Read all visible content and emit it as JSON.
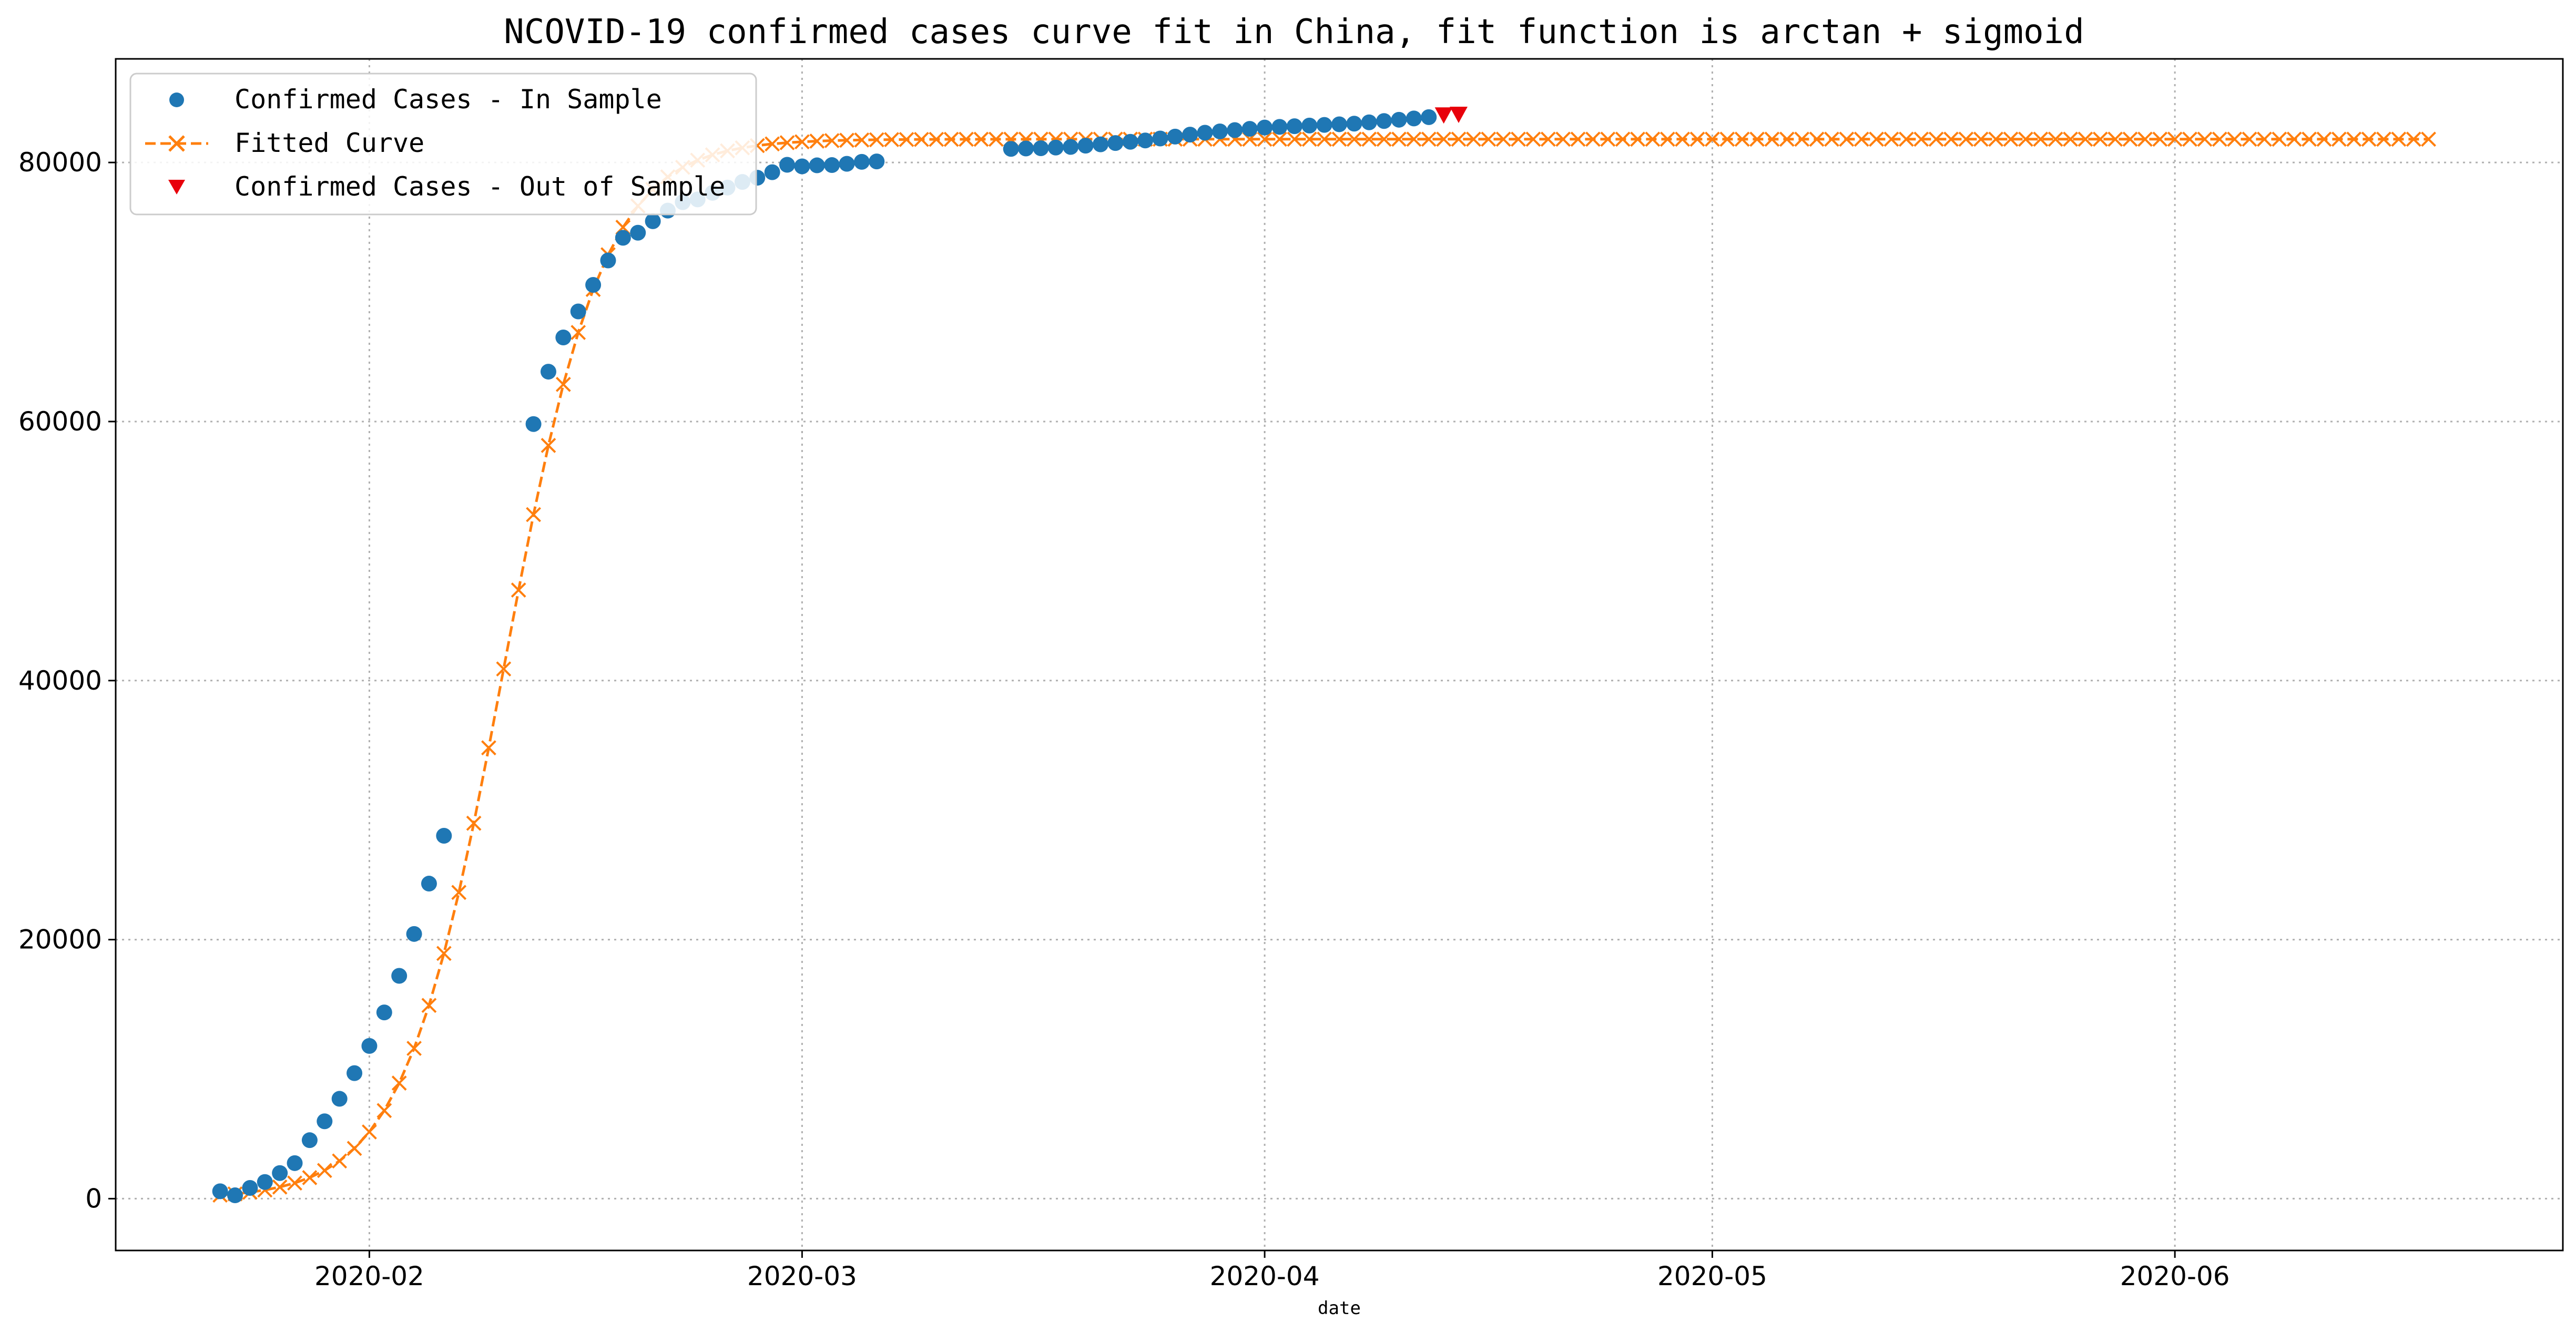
{
  "chart_data": {
    "type": "line",
    "title": "NCOVID-19 confirmed cases curve fit in China, fit function is arctan + sigmoid",
    "xlabel": "date",
    "ylabel": "",
    "x_axis": {
      "kind": "date",
      "range": [
        "2020-01-15",
        "2020-06-27"
      ],
      "ticks": [
        "2020-02-01",
        "2020-03-01",
        "2020-04-01",
        "2020-05-01",
        "2020-06-01"
      ],
      "tick_labels": [
        "2020-02",
        "2020-03",
        "2020-04",
        "2020-05",
        "2020-06"
      ]
    },
    "y_axis": {
      "range": [
        -4000,
        88000
      ],
      "ticks": [
        0,
        20000,
        40000,
        60000,
        80000
      ],
      "tick_labels": [
        "0",
        "20000",
        "40000",
        "60000",
        "80000"
      ]
    },
    "grid": true,
    "legend": {
      "position": "top-left"
    },
    "series": [
      {
        "name": "Confirmed Cases - In Sample",
        "style": "markers-circle",
        "color": "#1f77b4",
        "points": [
          [
            "2020-01-22",
            571
          ],
          [
            "2020-01-23",
            259
          ],
          [
            "2020-01-24",
            830
          ],
          [
            "2020-01-25",
            1287
          ],
          [
            "2020-01-26",
            1975
          ],
          [
            "2020-01-27",
            2744
          ],
          [
            "2020-01-28",
            4515
          ],
          [
            "2020-01-29",
            5974
          ],
          [
            "2020-01-30",
            7711
          ],
          [
            "2020-01-31",
            9692
          ],
          [
            "2020-02-01",
            11791
          ],
          [
            "2020-02-02",
            14380
          ],
          [
            "2020-02-03",
            17205
          ],
          [
            "2020-02-04",
            20438
          ],
          [
            "2020-02-05",
            24324
          ],
          [
            "2020-02-06",
            28018
          ],
          [
            "2020-02-12",
            59804
          ],
          [
            "2020-02-13",
            63851
          ],
          [
            "2020-02-14",
            66492
          ],
          [
            "2020-02-15",
            68500
          ],
          [
            "2020-02-16",
            70548
          ],
          [
            "2020-02-17",
            72436
          ],
          [
            "2020-02-18",
            74185
          ],
          [
            "2020-02-19",
            74576
          ],
          [
            "2020-02-20",
            75465
          ],
          [
            "2020-02-21",
            76288
          ],
          [
            "2020-02-22",
            76936
          ],
          [
            "2020-02-23",
            77150
          ],
          [
            "2020-02-24",
            77658
          ],
          [
            "2020-02-25",
            78064
          ],
          [
            "2020-02-26",
            78497
          ],
          [
            "2020-02-27",
            78824
          ],
          [
            "2020-02-28",
            79251
          ],
          [
            "2020-02-29",
            79824
          ],
          [
            "2020-03-01",
            79700
          ],
          [
            "2020-03-02",
            79780
          ],
          [
            "2020-03-03",
            79800
          ],
          [
            "2020-03-04",
            79900
          ],
          [
            "2020-03-05",
            80050
          ],
          [
            "2020-03-06",
            80080
          ],
          [
            "2020-03-15",
            81050
          ],
          [
            "2020-03-16",
            81080
          ],
          [
            "2020-03-17",
            81100
          ],
          [
            "2020-03-18",
            81150
          ],
          [
            "2020-03-19",
            81200
          ],
          [
            "2020-03-20",
            81300
          ],
          [
            "2020-03-21",
            81400
          ],
          [
            "2020-03-22",
            81500
          ],
          [
            "2020-03-23",
            81600
          ],
          [
            "2020-03-24",
            81700
          ],
          [
            "2020-03-25",
            81850
          ],
          [
            "2020-03-26",
            82000
          ],
          [
            "2020-03-27",
            82150
          ],
          [
            "2020-03-28",
            82300
          ],
          [
            "2020-03-29",
            82400
          ],
          [
            "2020-03-30",
            82500
          ],
          [
            "2020-03-31",
            82600
          ],
          [
            "2020-04-01",
            82700
          ],
          [
            "2020-04-02",
            82750
          ],
          [
            "2020-04-03",
            82800
          ],
          [
            "2020-04-04",
            82850
          ],
          [
            "2020-04-05",
            82900
          ],
          [
            "2020-04-06",
            82950
          ],
          [
            "2020-04-07",
            83000
          ],
          [
            "2020-04-08",
            83100
          ],
          [
            "2020-04-09",
            83200
          ],
          [
            "2020-04-10",
            83300
          ],
          [
            "2020-04-11",
            83400
          ],
          [
            "2020-04-12",
            83500
          ]
        ]
      },
      {
        "name": "Fitted Curve",
        "style": "dashed-line-x-markers",
        "color": "#ff7f0e",
        "x_start": "2020-01-22",
        "x_end": "2020-06-18",
        "step_days": 1,
        "model": {
          "k": 0.3,
          "t0_day": 19,
          "plateau": 81800
        }
      },
      {
        "name": "Confirmed Cases - Out of Sample",
        "style": "markers-triangle-down",
        "color": "#e8000b",
        "points": [
          [
            "2020-04-13",
            83650
          ],
          [
            "2020-04-14",
            83700
          ]
        ]
      }
    ]
  }
}
